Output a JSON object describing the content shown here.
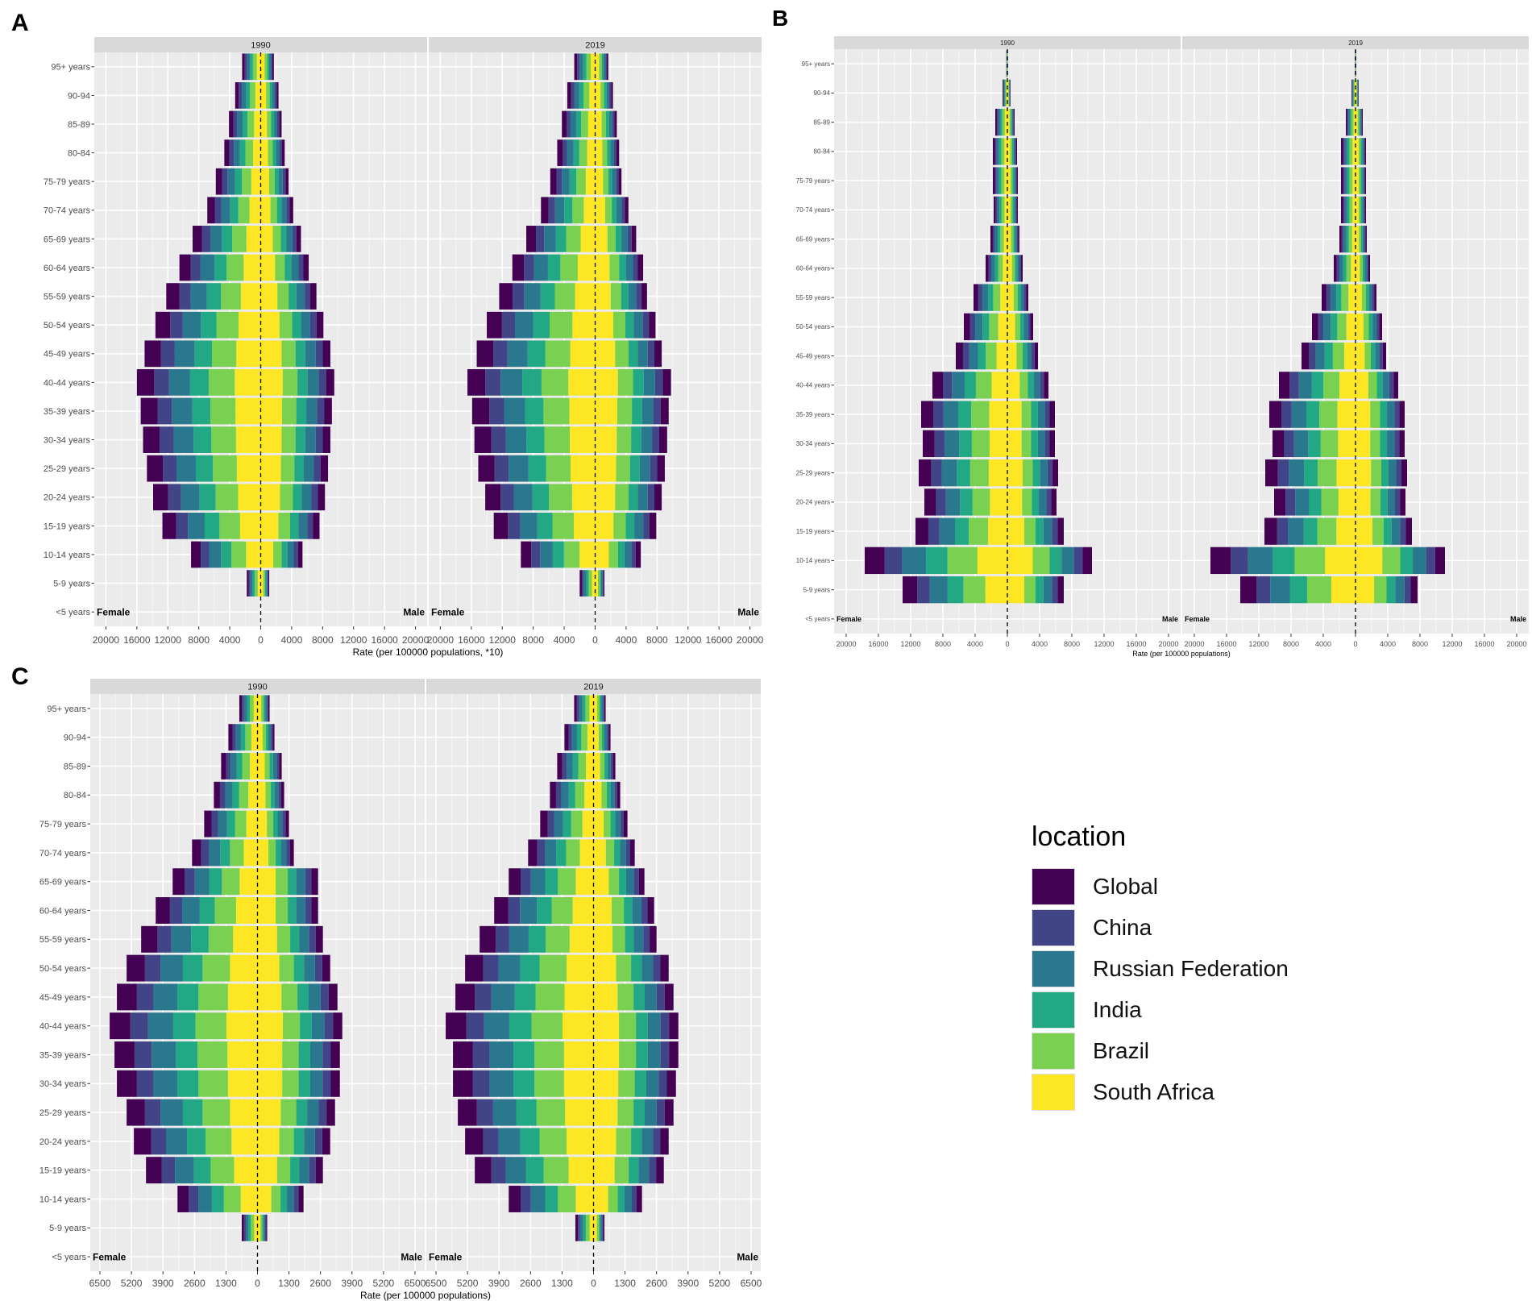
{
  "figure": {
    "panel_labels": [
      "A",
      "B",
      "C"
    ],
    "age_groups": [
      "<5 years",
      "5-9 years",
      "10-14 years",
      "15-19 years",
      "20-24 years",
      "25-29 years",
      "30-34 years",
      "35-39 years",
      "40-44 years",
      "45-49 years",
      "50-54 years",
      "55-59 years",
      "60-64 years",
      "65-69 years",
      "70-74 years",
      "75-79 years",
      "80-84",
      "85-89",
      "90-94",
      "95+ years"
    ],
    "female_label": "Female",
    "male_label": "Male",
    "legend": {
      "title": "location",
      "items": [
        {
          "name": "Global",
          "color": "#440154"
        },
        {
          "name": "China",
          "color": "#414487"
        },
        {
          "name": "Russian Federation",
          "color": "#2A788E"
        },
        {
          "name": "India",
          "color": "#22A884"
        },
        {
          "name": "Brazil",
          "color": "#7AD151"
        },
        {
          "name": "South Africa",
          "color": "#FDE725"
        }
      ]
    }
  },
  "chart_data": [
    {
      "type": "bar",
      "subtype": "stacked-population-pyramid",
      "panel": "A",
      "facets": [
        "1990",
        "2019"
      ],
      "xlabel": "Rate (per 100000 populations, *10)",
      "xlim": [
        -21500,
        21500
      ],
      "x_ticks": [
        -20000,
        -16000,
        -12000,
        -8000,
        -4000,
        0,
        4000,
        8000,
        12000,
        16000,
        20000
      ],
      "x_tick_labels": [
        "20000",
        "16000",
        "12000",
        "8000",
        "4000",
        "0",
        "4000",
        "8000",
        "12000",
        "16000",
        "20000"
      ],
      "female_shares": [
        0.14,
        0.12,
        0.17,
        0.15,
        0.21,
        0.21
      ],
      "male_shares": [
        0.11,
        0.1,
        0.15,
        0.14,
        0.2,
        0.3
      ],
      "series": [
        {
          "facet": "1990",
          "female_totals": [
            0,
            1800,
            9000,
            12700,
            13900,
            14700,
            15200,
            15500,
            16000,
            15000,
            13600,
            12200,
            10500,
            8800,
            6900,
            5800,
            4700,
            4100,
            3300,
            2400
          ],
          "male_totals": [
            0,
            1100,
            5400,
            7600,
            8300,
            8700,
            9000,
            9200,
            9500,
            9000,
            8100,
            7200,
            6200,
            5200,
            4200,
            3600,
            3100,
            2700,
            2300,
            1700
          ]
        },
        {
          "facet": "2019",
          "female_totals": [
            0,
            2000,
            9600,
            13100,
            14200,
            15100,
            15600,
            15900,
            16500,
            15300,
            14000,
            12400,
            10700,
            8900,
            7000,
            5800,
            4900,
            4300,
            3600,
            2700
          ],
          "male_totals": [
            0,
            1200,
            5900,
            7900,
            8600,
            9000,
            9300,
            9500,
            9800,
            8600,
            7800,
            6700,
            6200,
            5300,
            4300,
            3400,
            3100,
            2800,
            2300,
            1700
          ]
        }
      ]
    },
    {
      "type": "bar",
      "subtype": "stacked-population-pyramid",
      "panel": "B",
      "facets": [
        "1990",
        "2019"
      ],
      "xlabel": "Rate (per 100000 populations)",
      "xlim": [
        -21500,
        21500
      ],
      "x_ticks": [
        -20000,
        -16000,
        -12000,
        -8000,
        -4000,
        0,
        4000,
        8000,
        12000,
        16000,
        20000
      ],
      "x_tick_labels": [
        "20000",
        "16000",
        "12000",
        "8000",
        "4000",
        "0",
        "4000",
        "8000",
        "12000",
        "16000",
        "20000"
      ],
      "female_shares": [
        0.14,
        0.12,
        0.17,
        0.15,
        0.21,
        0.21
      ],
      "male_shares": [
        0.11,
        0.1,
        0.15,
        0.14,
        0.2,
        0.3
      ],
      "series": [
        {
          "facet": "1990",
          "female_totals": [
            0,
            13000,
            17700,
            11400,
            10300,
            11000,
            10500,
            10700,
            9300,
            6400,
            5400,
            4200,
            2700,
            2100,
            1700,
            1800,
            1800,
            1500,
            600,
            150
          ],
          "male_totals": [
            0,
            7000,
            10500,
            7000,
            6100,
            6300,
            5900,
            5900,
            5100,
            3800,
            3200,
            2600,
            1900,
            1500,
            1300,
            1300,
            1200,
            900,
            400,
            100
          ]
        },
        {
          "facet": "2019",
          "female_totals": [
            0,
            14300,
            18000,
            11300,
            10100,
            11200,
            10300,
            10700,
            9500,
            6700,
            5400,
            4200,
            2700,
            2000,
            1800,
            1800,
            1800,
            1200,
            500,
            100
          ],
          "male_totals": [
            0,
            7700,
            11100,
            7000,
            6200,
            6400,
            6100,
            6100,
            5300,
            3800,
            3300,
            2600,
            1800,
            1400,
            1300,
            1300,
            1300,
            900,
            400,
            100
          ]
        }
      ]
    },
    {
      "type": "bar",
      "subtype": "stacked-population-pyramid",
      "panel": "C",
      "facets": [
        "1990",
        "2019"
      ],
      "xlabel": "Rate (per 100000 populations)",
      "xlim": [
        -6900,
        6900
      ],
      "x_ticks": [
        -6500,
        -5200,
        -3900,
        -2600,
        -1300,
        0,
        1300,
        2600,
        3900,
        5200,
        6500
      ],
      "x_tick_labels": [
        "6500",
        "5200",
        "3900",
        "2600",
        "1300",
        "0",
        "1300",
        "2600",
        "3900",
        "5200",
        "6500"
      ],
      "female_shares": [
        0.14,
        0.12,
        0.17,
        0.15,
        0.21,
        0.21
      ],
      "male_shares": [
        0.11,
        0.1,
        0.15,
        0.14,
        0.2,
        0.3
      ],
      "series": [
        {
          "facet": "1990",
          "female_totals": [
            0,
            650,
            3300,
            4600,
            5100,
            5400,
            5800,
            5900,
            6100,
            5800,
            5400,
            4800,
            4200,
            3500,
            2700,
            2200,
            1800,
            1500,
            1200,
            750
          ],
          "male_totals": [
            0,
            400,
            1900,
            2700,
            3000,
            3200,
            3400,
            3400,
            3500,
            3300,
            3000,
            2700,
            2500,
            2500,
            1500,
            1300,
            1100,
            1000,
            700,
            500
          ]
        },
        {
          "facet": "2019",
          "female_totals": [
            0,
            750,
            3500,
            4900,
            5300,
            5600,
            5800,
            5800,
            6100,
            5700,
            5300,
            4700,
            4100,
            3500,
            2700,
            2200,
            1800,
            1500,
            1200,
            800
          ],
          "male_totals": [
            0,
            450,
            2000,
            2900,
            3100,
            3300,
            3400,
            3500,
            3500,
            3300,
            3100,
            2600,
            2500,
            2100,
            1700,
            1400,
            1100,
            900,
            700,
            500
          ]
        }
      ]
    }
  ]
}
